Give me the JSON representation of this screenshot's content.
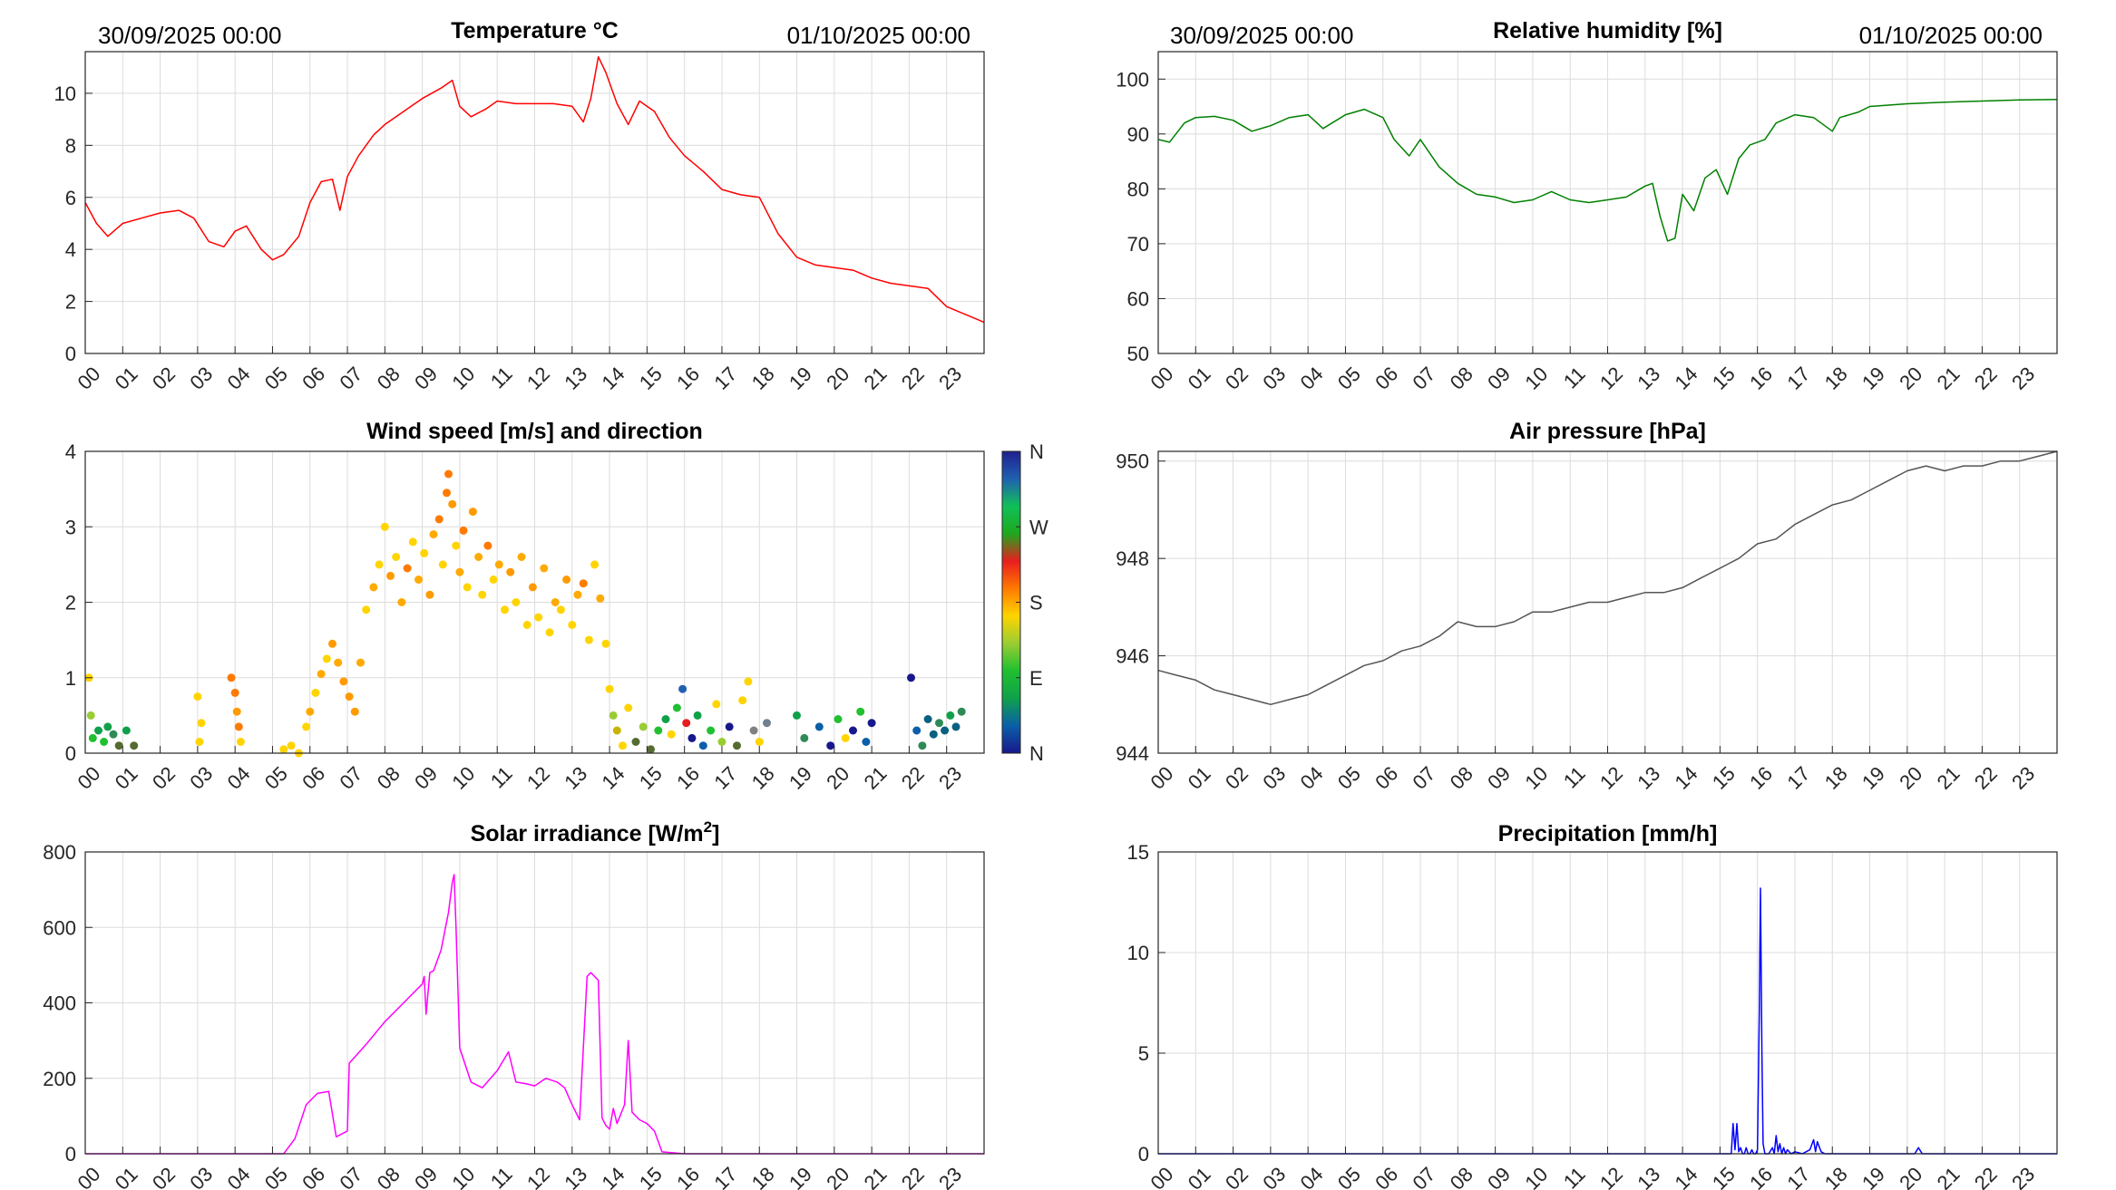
{
  "header": {
    "start_time": "30/09/2025 00:00",
    "end_time": "01/10/2025 00:00"
  },
  "hour_labels": [
    "00",
    "01",
    "02",
    "03",
    "04",
    "05",
    "06",
    "07",
    "08",
    "09",
    "10",
    "11",
    "12",
    "13",
    "14",
    "15",
    "16",
    "17",
    "18",
    "19",
    "20",
    "21",
    "22",
    "23"
  ],
  "colorbar": {
    "labels": [
      "N",
      "W",
      "S",
      "E",
      "N"
    ],
    "colors": [
      "#18188c",
      "#0a5fa8",
      "#0fa14a",
      "#20c030",
      "#9acd32",
      "#ffd400",
      "#ff7a00",
      "#e81e1e",
      "#1ea81e",
      "#10c058",
      "#2060b0",
      "#202090"
    ]
  },
  "chart_data": [
    {
      "id": "temperature",
      "type": "line",
      "title": "Temperature °C",
      "color": "#ff0000",
      "ylim": [
        0,
        11.6
      ],
      "yticks": [
        0,
        2,
        4,
        6,
        8,
        10
      ],
      "x": [
        0,
        0.3,
        0.6,
        1,
        1.5,
        2,
        2.5,
        2.9,
        3.3,
        3.7,
        4,
        4.3,
        4.7,
        5,
        5.3,
        5.7,
        6,
        6.3,
        6.6,
        6.8,
        7,
        7.3,
        7.7,
        8,
        8.3,
        8.7,
        9,
        9.5,
        9.8,
        10,
        10.3,
        10.7,
        11,
        11.5,
        12,
        12.5,
        13,
        13.3,
        13.5,
        13.7,
        13.9,
        14.2,
        14.5,
        14.8,
        15.2,
        15.6,
        16,
        16.5,
        17,
        17.5,
        18,
        18.5,
        19,
        19.5,
        20,
        20.5,
        21,
        21.5,
        22,
        22.5,
        23,
        23.5,
        24
      ],
      "y": [
        5.8,
        5.0,
        4.5,
        5.0,
        5.2,
        5.4,
        5.5,
        5.2,
        4.3,
        4.1,
        4.7,
        4.9,
        4.0,
        3.6,
        3.8,
        4.5,
        5.8,
        6.6,
        6.7,
        5.5,
        6.8,
        7.6,
        8.4,
        8.8,
        9.1,
        9.5,
        9.8,
        10.2,
        10.5,
        9.5,
        9.1,
        9.4,
        9.7,
        9.6,
        9.6,
        9.6,
        9.5,
        8.9,
        9.8,
        11.4,
        10.8,
        9.6,
        8.8,
        9.7,
        9.3,
        8.3,
        7.6,
        7.0,
        6.3,
        6.1,
        6.0,
        4.6,
        3.7,
        3.4,
        3.3,
        3.2,
        2.9,
        2.7,
        2.6,
        2.5,
        1.8,
        1.5,
        1.2
      ]
    },
    {
      "id": "humidity",
      "type": "line",
      "title": "Relative humidity [%]",
      "color": "#008000",
      "ylim": [
        50,
        105
      ],
      "yticks": [
        50,
        60,
        70,
        80,
        90,
        100
      ],
      "x": [
        0,
        0.3,
        0.7,
        1,
        1.5,
        2,
        2.5,
        3,
        3.5,
        4,
        4.4,
        5,
        5.5,
        6,
        6.3,
        6.7,
        7,
        7.5,
        8,
        8.5,
        9,
        9.5,
        10,
        10.5,
        11,
        11.5,
        12,
        12.5,
        13,
        13.2,
        13.4,
        13.6,
        13.8,
        14,
        14.3,
        14.6,
        14.9,
        15.2,
        15.5,
        15.8,
        16.2,
        16.5,
        17,
        17.5,
        18,
        18.2,
        18.7,
        19,
        20,
        21,
        22,
        23,
        24
      ],
      "y": [
        89.0,
        88.5,
        92.0,
        93.0,
        93.2,
        92.5,
        90.5,
        91.5,
        93.0,
        93.5,
        91.0,
        93.5,
        94.5,
        93.0,
        89.0,
        86.0,
        89.0,
        84.0,
        81.0,
        79.0,
        78.5,
        77.5,
        78.0,
        79.5,
        78.0,
        77.5,
        78.0,
        78.5,
        80.5,
        81.0,
        75.0,
        70.5,
        71.0,
        79.0,
        76.0,
        82.0,
        83.5,
        79.0,
        85.5,
        88.0,
        89.0,
        92.0,
        93.5,
        93.0,
        90.5,
        93.0,
        94.0,
        95.0,
        95.5,
        95.8,
        96.0,
        96.2,
        96.3
      ]
    },
    {
      "id": "wind",
      "type": "scatter",
      "title": "Wind speed [m/s] and direction",
      "ylim": [
        0,
        4
      ],
      "yticks": [
        0,
        1,
        2,
        3,
        4
      ],
      "color_axis": "wind direction (N, E, S, W, N)",
      "points": [
        [
          0.1,
          1.0,
          "#ffd400"
        ],
        [
          0.15,
          0.5,
          "#9acd32"
        ],
        [
          0.2,
          0.2,
          "#20c030"
        ],
        [
          0.35,
          0.3,
          "#0fa14a"
        ],
        [
          0.5,
          0.15,
          "#20c030"
        ],
        [
          0.6,
          0.35,
          "#0fa14a"
        ],
        [
          0.75,
          0.25,
          "#2e8b57"
        ],
        [
          0.9,
          0.1,
          "#556b2f"
        ],
        [
          1.1,
          0.3,
          "#0fa14a"
        ],
        [
          1.3,
          0.1,
          "#556b2f"
        ],
        [
          3.0,
          0.75,
          "#ffd400"
        ],
        [
          3.1,
          0.4,
          "#ffd400"
        ],
        [
          3.05,
          0.15,
          "#ffd400"
        ],
        [
          3.9,
          1.0,
          "#ff7a00"
        ],
        [
          4.0,
          0.8,
          "#ff7a00"
        ],
        [
          4.05,
          0.55,
          "#ff9a00"
        ],
        [
          4.1,
          0.35,
          "#ff7a00"
        ],
        [
          4.15,
          0.15,
          "#ffd400"
        ],
        [
          5.3,
          0.05,
          "#ffd400"
        ],
        [
          5.5,
          0.1,
          "#ffd400"
        ],
        [
          5.7,
          0.0,
          "#ffd400"
        ],
        [
          5.9,
          0.35,
          "#ffd400"
        ],
        [
          6.0,
          0.55,
          "#ffaa00"
        ],
        [
          6.15,
          0.8,
          "#ffd400"
        ],
        [
          6.3,
          1.05,
          "#ffaa00"
        ],
        [
          6.45,
          1.25,
          "#ffd400"
        ],
        [
          6.6,
          1.45,
          "#ff9a00"
        ],
        [
          6.75,
          1.2,
          "#ffaa00"
        ],
        [
          6.9,
          0.95,
          "#ff9a00"
        ],
        [
          7.05,
          0.75,
          "#ff9a00"
        ],
        [
          7.2,
          0.55,
          "#ff9a00"
        ],
        [
          7.35,
          1.2,
          "#ffaa00"
        ],
        [
          7.5,
          1.9,
          "#ffd400"
        ],
        [
          7.7,
          2.2,
          "#ffaa00"
        ],
        [
          7.85,
          2.5,
          "#ffd400"
        ],
        [
          8.0,
          3.0,
          "#ffd400"
        ],
        [
          8.15,
          2.35,
          "#ff9a00"
        ],
        [
          8.3,
          2.6,
          "#ffd400"
        ],
        [
          8.45,
          2.0,
          "#ffaa00"
        ],
        [
          8.6,
          2.45,
          "#ff7a00"
        ],
        [
          8.75,
          2.8,
          "#ffd400"
        ],
        [
          8.9,
          2.3,
          "#ffaa00"
        ],
        [
          9.05,
          2.65,
          "#ffd400"
        ],
        [
          9.2,
          2.1,
          "#ff9a00"
        ],
        [
          9.3,
          2.9,
          "#ffaa00"
        ],
        [
          9.45,
          3.1,
          "#ff7a00"
        ],
        [
          9.55,
          2.5,
          "#ffd400"
        ],
        [
          9.65,
          3.45,
          "#ff7a00"
        ],
        [
          9.7,
          3.7,
          "#ff7a00"
        ],
        [
          9.8,
          3.3,
          "#ff9a00"
        ],
        [
          9.9,
          2.75,
          "#ffd400"
        ],
        [
          10.0,
          2.4,
          "#ffaa00"
        ],
        [
          10.1,
          2.95,
          "#ff7a00"
        ],
        [
          10.2,
          2.2,
          "#ffd400"
        ],
        [
          10.35,
          3.2,
          "#ff9a00"
        ],
        [
          10.5,
          2.6,
          "#ffaa00"
        ],
        [
          10.6,
          2.1,
          "#ffd400"
        ],
        [
          10.75,
          2.75,
          "#ff7a00"
        ],
        [
          10.9,
          2.3,
          "#ffd400"
        ],
        [
          11.05,
          2.5,
          "#ffaa00"
        ],
        [
          11.2,
          1.9,
          "#ffd400"
        ],
        [
          11.35,
          2.4,
          "#ff9a00"
        ],
        [
          11.5,
          2.0,
          "#ffd400"
        ],
        [
          11.65,
          2.6,
          "#ffaa00"
        ],
        [
          11.8,
          1.7,
          "#ffd400"
        ],
        [
          11.95,
          2.2,
          "#ff9a00"
        ],
        [
          12.1,
          1.8,
          "#ffd400"
        ],
        [
          12.25,
          2.45,
          "#ffaa00"
        ],
        [
          12.4,
          1.6,
          "#ffd400"
        ],
        [
          12.55,
          2.0,
          "#ffaa00"
        ],
        [
          12.7,
          1.9,
          "#ffd400"
        ],
        [
          12.85,
          2.3,
          "#ff9a00"
        ],
        [
          13.0,
          1.7,
          "#ffd400"
        ],
        [
          13.15,
          2.1,
          "#ffaa00"
        ],
        [
          13.3,
          2.25,
          "#ff7a00"
        ],
        [
          13.45,
          1.5,
          "#ffd400"
        ],
        [
          13.6,
          2.5,
          "#ffd400"
        ],
        [
          13.75,
          2.05,
          "#ffaa00"
        ],
        [
          13.9,
          1.45,
          "#ffd400"
        ],
        [
          14.0,
          0.85,
          "#ffd400"
        ],
        [
          14.1,
          0.5,
          "#9acd32"
        ],
        [
          14.2,
          0.3,
          "#c8b400"
        ],
        [
          14.35,
          0.1,
          "#ffd400"
        ],
        [
          14.5,
          0.6,
          "#ffd400"
        ],
        [
          14.7,
          0.15,
          "#556b2f"
        ],
        [
          14.9,
          0.35,
          "#9acd32"
        ],
        [
          15.1,
          0.05,
          "#556b2f"
        ],
        [
          15.3,
          0.3,
          "#20c030"
        ],
        [
          15.5,
          0.45,
          "#0fa14a"
        ],
        [
          15.65,
          0.25,
          "#ffd400"
        ],
        [
          15.8,
          0.6,
          "#20c030"
        ],
        [
          15.95,
          0.85,
          "#2060b0"
        ],
        [
          16.05,
          0.4,
          "#e81e1e"
        ],
        [
          16.2,
          0.2,
          "#18188c"
        ],
        [
          16.35,
          0.5,
          "#0fa14a"
        ],
        [
          16.5,
          0.1,
          "#0a5fa8"
        ],
        [
          16.7,
          0.3,
          "#20c030"
        ],
        [
          16.85,
          0.65,
          "#ffd400"
        ],
        [
          17.0,
          0.15,
          "#9acd32"
        ],
        [
          17.2,
          0.35,
          "#18188c"
        ],
        [
          17.4,
          0.1,
          "#556b2f"
        ],
        [
          17.55,
          0.7,
          "#ffd400"
        ],
        [
          17.7,
          0.95,
          "#ffd400"
        ],
        [
          17.85,
          0.3,
          "#808080"
        ],
        [
          18.0,
          0.15,
          "#ffd400"
        ],
        [
          18.2,
          0.4,
          "#708090"
        ],
        [
          19.0,
          0.5,
          "#0fa14a"
        ],
        [
          19.2,
          0.2,
          "#2e8b57"
        ],
        [
          19.6,
          0.35,
          "#0a5fa8"
        ],
        [
          19.9,
          0.1,
          "#18188c"
        ],
        [
          20.1,
          0.45,
          "#20c030"
        ],
        [
          20.3,
          0.2,
          "#ffd400"
        ],
        [
          20.5,
          0.3,
          "#18188c"
        ],
        [
          20.7,
          0.55,
          "#20c030"
        ],
        [
          20.85,
          0.15,
          "#0a5fa8"
        ],
        [
          21.0,
          0.4,
          "#18188c"
        ],
        [
          22.05,
          1.0,
          "#18188c"
        ],
        [
          22.2,
          0.3,
          "#0a5fa8"
        ],
        [
          22.35,
          0.1,
          "#2e8b57"
        ],
        [
          22.5,
          0.45,
          "#0a6080"
        ],
        [
          22.65,
          0.25,
          "#0a6080"
        ],
        [
          22.8,
          0.4,
          "#2e8b57"
        ],
        [
          22.95,
          0.3,
          "#0a6080"
        ],
        [
          23.1,
          0.5,
          "#0fa14a"
        ],
        [
          23.25,
          0.35,
          "#0a6080"
        ],
        [
          23.4,
          0.55,
          "#2e8b57"
        ]
      ]
    },
    {
      "id": "pressure",
      "type": "line",
      "title": "Air pressure [hPa]",
      "color": "#555555",
      "ylim": [
        944,
        950.2
      ],
      "yticks": [
        944,
        946,
        948,
        950
      ],
      "x": [
        0,
        0.5,
        1,
        1.5,
        2,
        2.5,
        3,
        3.5,
        4,
        4.5,
        5,
        5.5,
        6,
        6.5,
        7,
        7.5,
        8,
        8.5,
        9,
        9.5,
        10,
        10.5,
        11,
        11.5,
        12,
        12.5,
        13,
        13.5,
        14,
        14.5,
        15,
        15.5,
        16,
        16.5,
        17,
        17.5,
        18,
        18.5,
        19,
        19.5,
        20,
        20.5,
        21,
        21.5,
        22,
        22.5,
        23,
        23.5,
        24
      ],
      "y": [
        945.7,
        945.6,
        945.5,
        945.3,
        945.2,
        945.1,
        945.0,
        945.1,
        945.2,
        945.4,
        945.6,
        945.8,
        945.9,
        946.1,
        946.2,
        946.4,
        946.7,
        946.6,
        946.6,
        946.7,
        946.9,
        946.9,
        947.0,
        947.1,
        947.1,
        947.2,
        947.3,
        947.3,
        947.4,
        947.6,
        947.8,
        948.0,
        948.3,
        948.4,
        948.7,
        948.9,
        949.1,
        949.2,
        949.4,
        949.6,
        949.8,
        949.9,
        949.8,
        949.9,
        949.9,
        950.0,
        950.0,
        950.1,
        950.2
      ]
    },
    {
      "id": "solar",
      "type": "line",
      "title": "Solar irradiance [W/m2]",
      "color": "#ff00ff",
      "ylim": [
        0,
        800
      ],
      "yticks": [
        0,
        200,
        400,
        600,
        800
      ],
      "x": [
        0,
        5.3,
        5.6,
        5.9,
        6.2,
        6.5,
        6.7,
        6.8,
        7.0,
        7.05,
        7.5,
        8,
        8.5,
        9.0,
        9.05,
        9.1,
        9.2,
        9.3,
        9.5,
        9.7,
        9.8,
        9.85,
        9.9,
        10.0,
        10.3,
        10.6,
        11.0,
        11.3,
        11.5,
        11.8,
        12.0,
        12.3,
        12.6,
        12.8,
        13.0,
        13.2,
        13.4,
        13.5,
        13.7,
        13.8,
        13.9,
        14.0,
        14.1,
        14.2,
        14.4,
        14.5,
        14.6,
        14.8,
        15.0,
        15.2,
        15.4,
        16,
        24
      ],
      "y": [
        0,
        0,
        40,
        130,
        160,
        165,
        45,
        50,
        60,
        240,
        290,
        350,
        400,
        450,
        470,
        370,
        480,
        485,
        540,
        640,
        720,
        740,
        600,
        280,
        190,
        175,
        220,
        270,
        190,
        185,
        180,
        200,
        190,
        175,
        130,
        90,
        470,
        480,
        460,
        95,
        75,
        65,
        120,
        80,
        130,
        300,
        110,
        90,
        80,
        60,
        5,
        0,
        0
      ]
    },
    {
      "id": "precipitation",
      "type": "line",
      "title": "Precipitation [mm/h]",
      "color": "#0000ff",
      "ylim": [
        0,
        15
      ],
      "yticks": [
        0,
        5,
        10,
        15
      ],
      "x": [
        0,
        15.3,
        15.35,
        15.4,
        15.45,
        15.5,
        15.55,
        15.6,
        15.65,
        15.7,
        15.75,
        15.8,
        15.85,
        15.9,
        15.95,
        16.0,
        16.05,
        16.08,
        16.12,
        16.15,
        16.2,
        16.3,
        16.4,
        16.45,
        16.5,
        16.55,
        16.6,
        16.65,
        16.7,
        16.75,
        16.8,
        16.9,
        17.0,
        17.2,
        17.4,
        17.5,
        17.55,
        17.6,
        17.7,
        17.8,
        18.0,
        20.2,
        20.3,
        20.4,
        20.5,
        24
      ],
      "y": [
        0,
        0,
        1.5,
        0.2,
        1.5,
        0.1,
        0.3,
        0.0,
        0.0,
        0.3,
        0.0,
        0.0,
        0.2,
        0.0,
        0.0,
        0.2,
        7.0,
        13.2,
        5.0,
        0.5,
        0.0,
        0.0,
        0.3,
        0.0,
        0.9,
        0.1,
        0.5,
        0.0,
        0.3,
        0.0,
        0.2,
        0.0,
        0.1,
        0.0,
        0.2,
        0.7,
        0.1,
        0.6,
        0.1,
        0.0,
        0.0,
        0.0,
        0.3,
        0.0,
        0.0,
        0.0
      ]
    }
  ]
}
